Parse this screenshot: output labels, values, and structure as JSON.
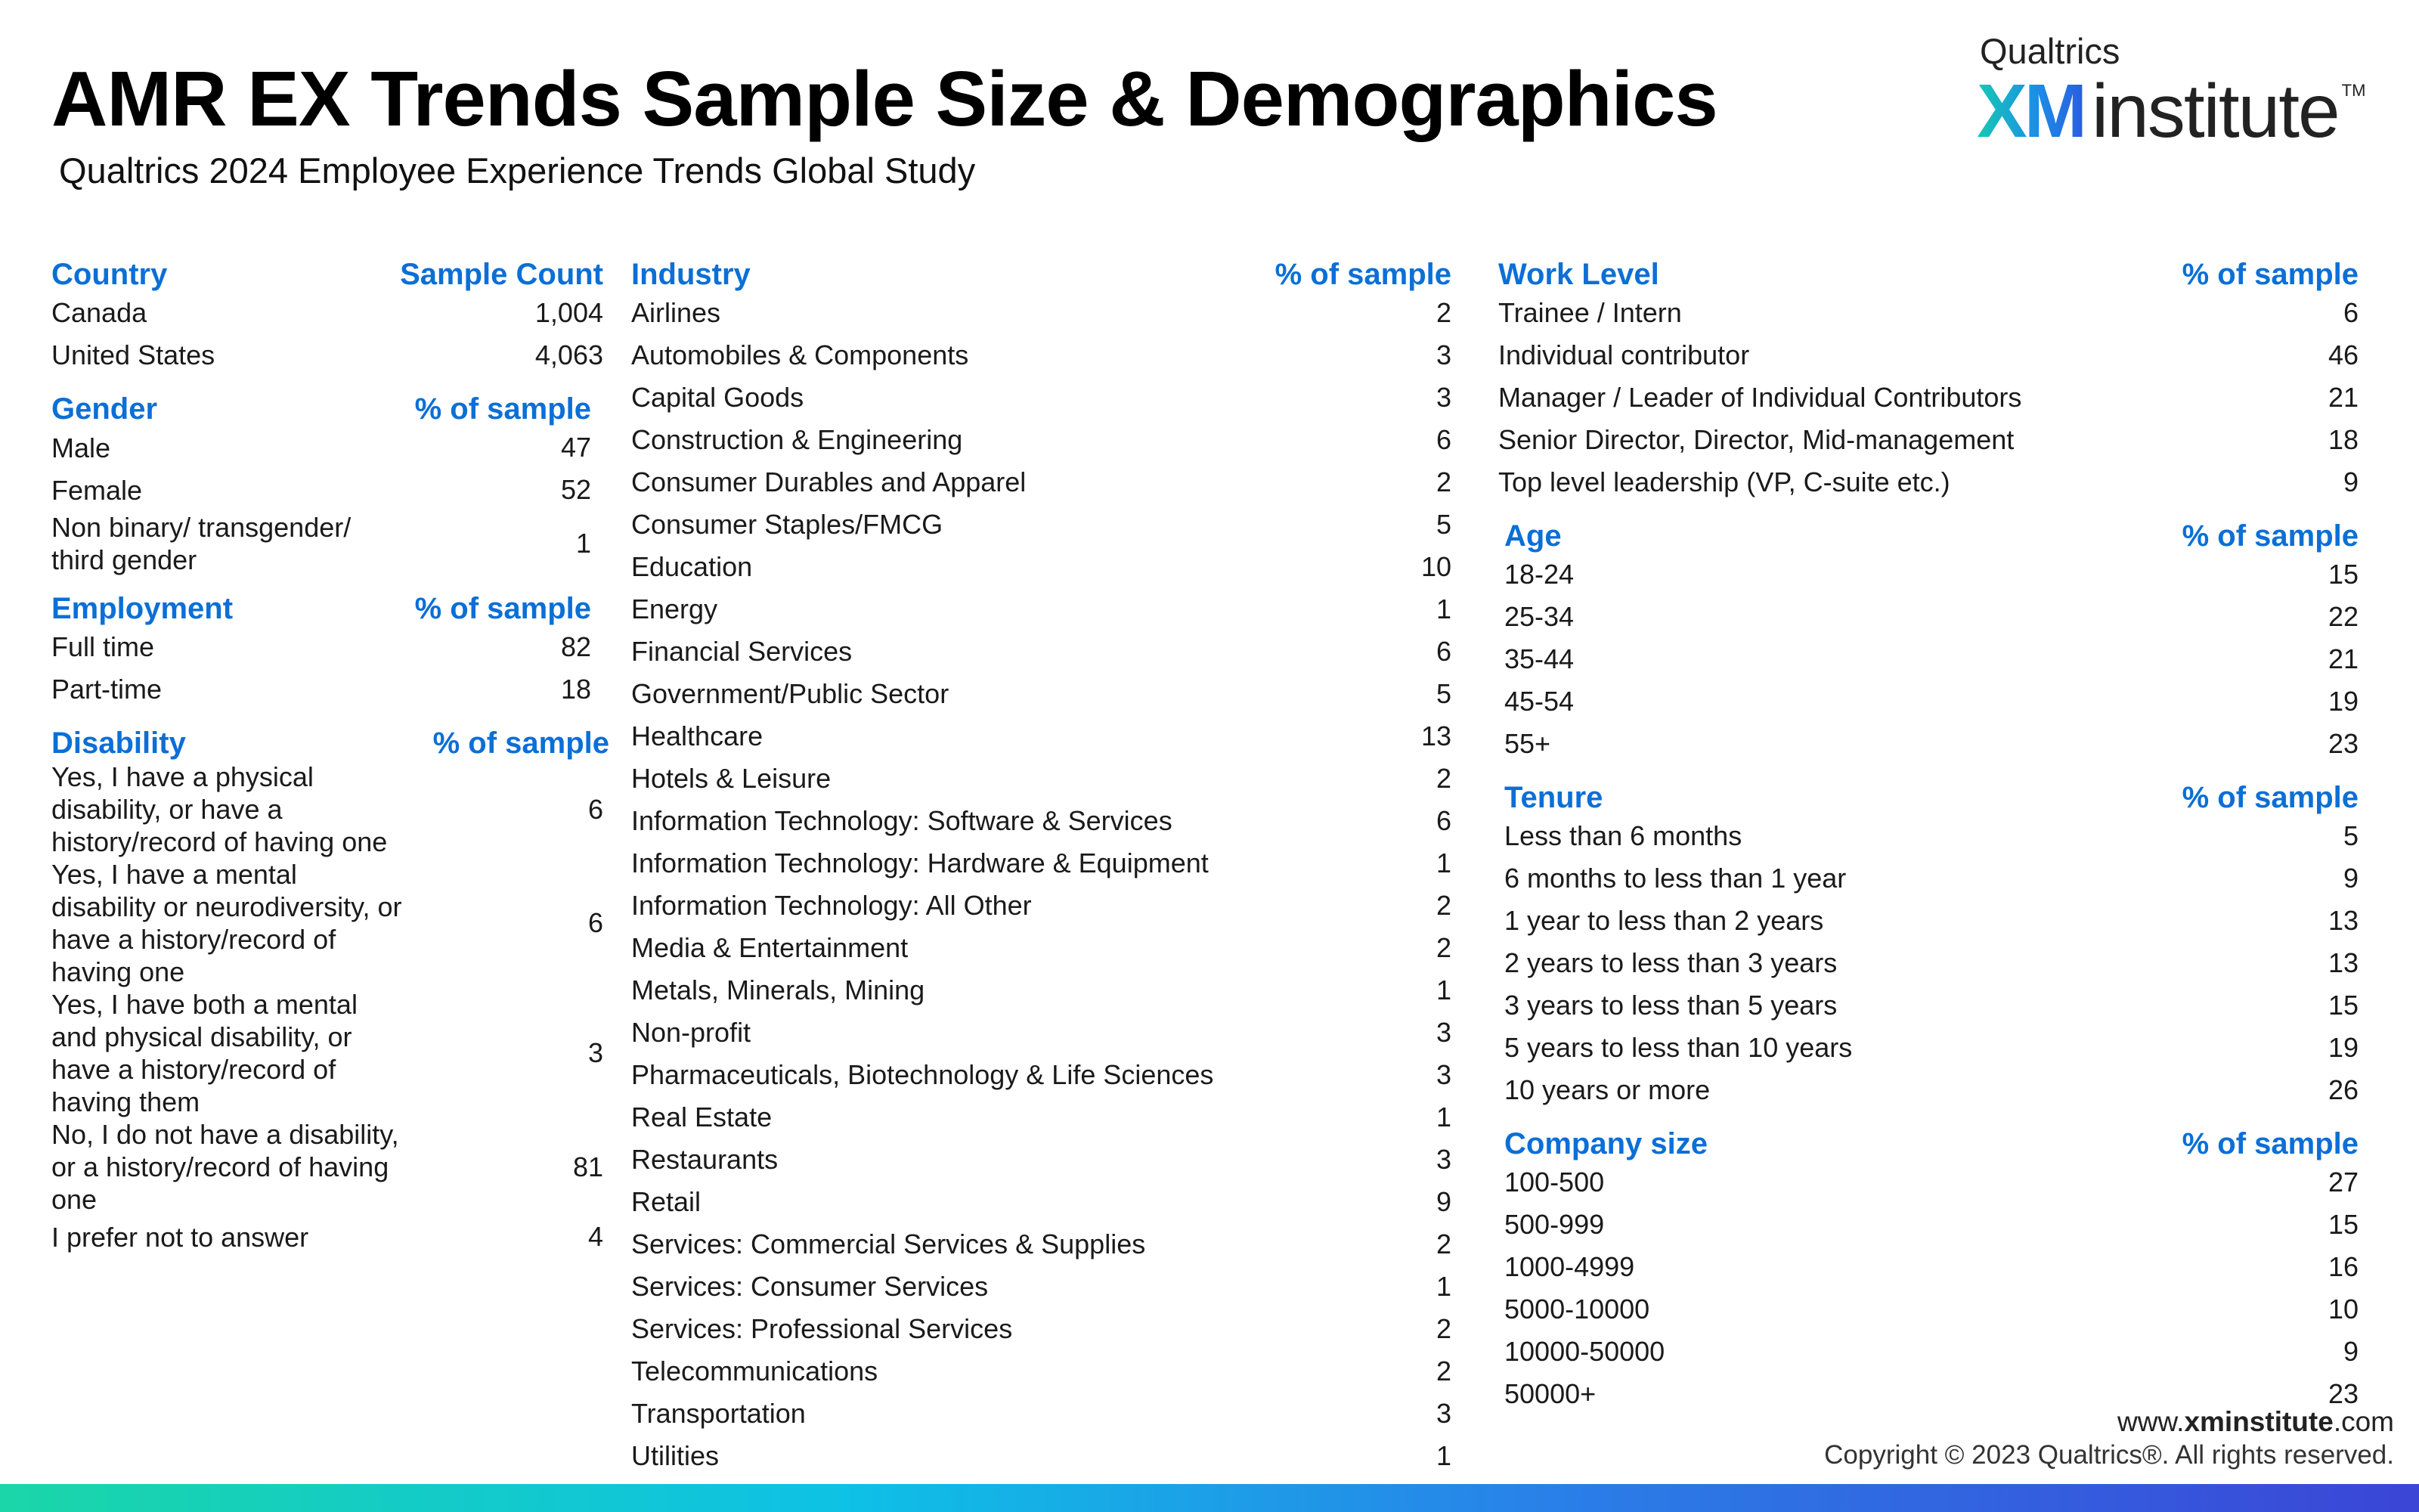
{
  "header": {
    "title": "AMR EX Trends Sample Size & Demographics",
    "subtitle": "Qualtrics 2024 Employee Experience Trends Global Study"
  },
  "logo": {
    "top_text": "Qualtrics",
    "xm_text": "XM",
    "institute_text": "institute",
    "tm": "TM"
  },
  "colors": {
    "heading_blue": "#0b6fd6",
    "gradient": [
      "#1ad6a8",
      "#0ec1e6",
      "#2a7ee8",
      "#3b45d6"
    ]
  },
  "left_column": {
    "country": {
      "heading": "Country",
      "value_heading": "Sample Count",
      "rows": [
        {
          "label": "Canada",
          "value": "1,004"
        },
        {
          "label": "United States",
          "value": "4,063"
        }
      ]
    },
    "gender": {
      "heading": "Gender",
      "value_heading": "% of sample",
      "rows": [
        {
          "label": "Male",
          "value": "47"
        },
        {
          "label": "Female",
          "value": "52"
        },
        {
          "label": "Non binary/ transgender/ third gender",
          "value": "1"
        }
      ]
    },
    "employment": {
      "heading": "Employment",
      "value_heading": "% of sample",
      "rows": [
        {
          "label": "Full time",
          "value": "82"
        },
        {
          "label": "Part-time",
          "value": "18"
        }
      ]
    },
    "disability": {
      "heading": "Disability",
      "value_heading": "% of sample",
      "rows": [
        {
          "label": "Yes, I have a physical disability, or have a history/record of having one",
          "value": "6"
        },
        {
          "label": "Yes, I have a mental disability or neurodiversity, or have a history/record of having one",
          "value": "6"
        },
        {
          "label": "Yes, I have both a mental and physical disability, or have a history/record of having them",
          "value": "3"
        },
        {
          "label": "No, I do not have a disability, or a history/record of having one",
          "value": "81"
        },
        {
          "label": "I prefer not to answer",
          "value": "4"
        }
      ]
    }
  },
  "industry": {
    "heading": "Industry",
    "value_heading": "% of sample",
    "rows": [
      {
        "label": "Airlines",
        "value": "2"
      },
      {
        "label": "Automobiles & Components",
        "value": "3"
      },
      {
        "label": "Capital Goods",
        "value": "3"
      },
      {
        "label": "Construction & Engineering",
        "value": "6"
      },
      {
        "label": "Consumer Durables and Apparel",
        "value": "2"
      },
      {
        "label": "Consumer Staples/FMCG",
        "value": "5"
      },
      {
        "label": "Education",
        "value": "10"
      },
      {
        "label": "Energy",
        "value": "1"
      },
      {
        "label": "Financial Services",
        "value": "6"
      },
      {
        "label": "Government/Public Sector",
        "value": "5"
      },
      {
        "label": "Healthcare",
        "value": "13"
      },
      {
        "label": "Hotels & Leisure",
        "value": "2"
      },
      {
        "label": "Information Technology: Software & Services",
        "value": "6"
      },
      {
        "label": "Information Technology: Hardware & Equipment",
        "value": "1"
      },
      {
        "label": "Information Technology: All Other",
        "value": "2"
      },
      {
        "label": "Media & Entertainment",
        "value": "2"
      },
      {
        "label": "Metals, Minerals, Mining",
        "value": "1"
      },
      {
        "label": "Non-profit",
        "value": "3"
      },
      {
        "label": "Pharmaceuticals, Biotechnology & Life Sciences",
        "value": "3"
      },
      {
        "label": "Real Estate",
        "value": "1"
      },
      {
        "label": "Restaurants",
        "value": "3"
      },
      {
        "label": "Retail",
        "value": "9"
      },
      {
        "label": "Services: Commercial Services & Supplies",
        "value": "2"
      },
      {
        "label": "Services: Consumer Services",
        "value": "1"
      },
      {
        "label": "Services: Professional Services",
        "value": "2"
      },
      {
        "label": "Telecommunications",
        "value": "2"
      },
      {
        "label": "Transportation",
        "value": "3"
      },
      {
        "label": "Utilities",
        "value": "1"
      }
    ]
  },
  "right_column": {
    "work_level": {
      "heading": "Work Level",
      "value_heading": "% of sample",
      "rows": [
        {
          "label": "Trainee / Intern",
          "value": "6"
        },
        {
          "label": "Individual contributor",
          "value": "46"
        },
        {
          "label": "Manager / Leader of Individual Contributors",
          "value": "21"
        },
        {
          "label": "Senior Director, Director, Mid-management",
          "value": "18"
        },
        {
          "label": "Top level leadership (VP, C-suite etc.)",
          "value": "9"
        }
      ]
    },
    "age": {
      "heading": "Age",
      "value_heading": "% of sample",
      "rows": [
        {
          "label": "18-24",
          "value": "15"
        },
        {
          "label": "25-34",
          "value": "22"
        },
        {
          "label": "35-44",
          "value": "21"
        },
        {
          "label": "45-54",
          "value": "19"
        },
        {
          "label": "55+",
          "value": "23"
        }
      ]
    },
    "tenure": {
      "heading": "Tenure",
      "value_heading": "% of sample",
      "rows": [
        {
          "label": "Less than 6 months",
          "value": "5"
        },
        {
          "label": "6 months to less than 1 year",
          "value": "9"
        },
        {
          "label": "1 year to less than 2 years",
          "value": "13"
        },
        {
          "label": "2 years to less than 3 years",
          "value": "13"
        },
        {
          "label": "3 years to less than 5 years",
          "value": "15"
        },
        {
          "label": "5 years to less than 10 years",
          "value": "19"
        },
        {
          "label": "10 years or more",
          "value": "26"
        }
      ]
    },
    "company_size": {
      "heading": "Company size",
      "value_heading": "% of sample",
      "rows": [
        {
          "label": "100-500",
          "value": "27"
        },
        {
          "label": "500-999",
          "value": "15"
        },
        {
          "label": "1000-4999",
          "value": "16"
        },
        {
          "label": "5000-10000",
          "value": "10"
        },
        {
          "label": "10000-50000",
          "value": "9"
        },
        {
          "label": "50000+",
          "value": "23"
        }
      ]
    }
  },
  "footer": {
    "url_prefix": "www.",
    "url_bold": "xminstitute",
    "url_suffix": ".com",
    "copyright": "Copyright © 2023 Qualtrics®. All rights reserved."
  }
}
